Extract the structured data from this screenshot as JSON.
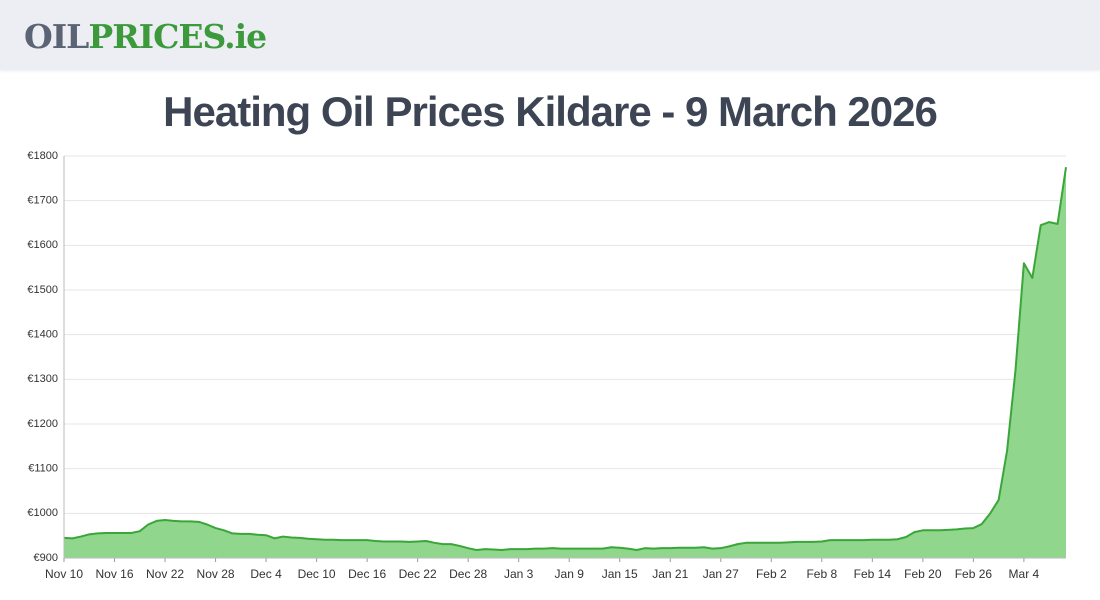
{
  "header": {
    "logo": [
      "OIL",
      "PRICES.ie"
    ]
  },
  "chart_data": {
    "type": "area",
    "title": "Heating Oil Prices Kildare - 9 March 2026",
    "categories": [
      "Nov 10",
      null,
      null,
      null,
      null,
      null,
      "Nov 16",
      null,
      null,
      null,
      null,
      null,
      "Nov 22",
      null,
      null,
      null,
      null,
      null,
      "Nov 28",
      null,
      null,
      null,
      null,
      null,
      "Dec 4",
      null,
      null,
      null,
      null,
      null,
      "Dec 10",
      null,
      null,
      null,
      null,
      null,
      "Dec 16",
      null,
      null,
      null,
      null,
      null,
      "Dec 22",
      null,
      null,
      null,
      null,
      null,
      "Dec 28",
      null,
      null,
      null,
      null,
      null,
      "Jan 3",
      null,
      null,
      null,
      null,
      null,
      "Jan 9",
      null,
      null,
      null,
      null,
      null,
      "Jan 15",
      null,
      null,
      null,
      null,
      null,
      "Jan 21",
      null,
      null,
      null,
      null,
      null,
      "Jan 27",
      null,
      null,
      null,
      null,
      null,
      "Feb 2",
      null,
      null,
      null,
      null,
      null,
      "Feb 8",
      null,
      null,
      null,
      null,
      null,
      "Feb 14",
      null,
      null,
      null,
      null,
      null,
      "Feb 20",
      null,
      null,
      null,
      null,
      null,
      "Feb 26",
      null,
      null,
      null,
      null,
      null,
      "Mar 4",
      null,
      null,
      null,
      null,
      null
    ],
    "values": [
      945,
      944,
      948,
      953,
      955,
      956,
      956,
      956,
      956,
      960,
      975,
      983,
      985,
      983,
      982,
      982,
      981,
      975,
      967,
      962,
      955,
      954,
      954,
      952,
      951,
      944,
      948,
      946,
      945,
      943,
      942,
      941,
      941,
      940,
      940,
      940,
      940,
      938,
      937,
      937,
      937,
      936,
      937,
      938,
      934,
      931,
      931,
      927,
      922,
      918,
      920,
      919,
      918,
      920,
      920,
      920,
      921,
      921,
      922,
      921,
      921,
      921,
      921,
      921,
      921,
      924,
      923,
      921,
      918,
      922,
      921,
      922,
      922,
      923,
      923,
      923,
      924,
      921,
      922,
      926,
      931,
      934,
      934,
      934,
      934,
      934,
      935,
      936,
      936,
      936,
      937,
      940,
      940,
      940,
      940,
      940,
      941,
      941,
      941,
      942,
      947,
      958,
      962,
      962,
      962,
      963,
      964,
      966,
      967,
      976,
      1000,
      1030,
      1140,
      1320,
      1560,
      1527,
      1645,
      1652,
      1648,
      1775
    ],
    "line_color": "#3aa63a",
    "fill_color": "#90d68c",
    "ylim": [
      900,
      1800
    ],
    "yticks": [
      {
        "value": 900,
        "label": "€900"
      },
      {
        "value": 1000,
        "label": "€1000"
      },
      {
        "value": 1100,
        "label": "€1100"
      },
      {
        "value": 1200,
        "label": "€1200"
      },
      {
        "value": 1300,
        "label": "€1300"
      },
      {
        "value": 1400,
        "label": "€1400"
      },
      {
        "value": 1500,
        "label": "€1500"
      },
      {
        "value": 1600,
        "label": "€1600"
      },
      {
        "value": 1700,
        "label": "€1700"
      },
      {
        "value": 1800,
        "label": "€1800"
      }
    ],
    "grid": true
  }
}
